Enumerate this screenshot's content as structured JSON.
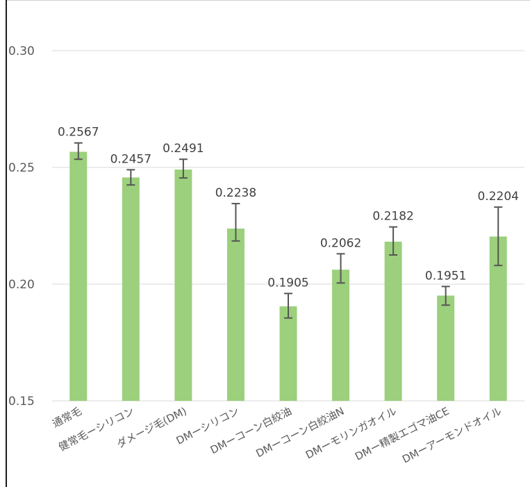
{
  "chart_data": {
    "type": "bar",
    "title": "",
    "xlabel": "",
    "ylabel": "",
    "ylim": [
      0.15,
      0.31
    ],
    "yticks": [
      "0.15",
      "0.20",
      "0.25",
      "0.30"
    ],
    "yticks_values": [
      0.15,
      0.2,
      0.25,
      0.3
    ],
    "grid": true,
    "bar_color": "#9cd07c",
    "errorbar_color": "#555555",
    "categories": [
      "通常毛",
      "健常毛ーシリコン",
      "ダメージ毛(DM)",
      "DMーシリコン",
      "DMーコーン白絞油",
      "DMーコーン白絞油N",
      "DMーモリンガオイル",
      "DMー精製エゴマ油CE",
      "DMーアーモンドオイル"
    ],
    "values": [
      0.2567,
      0.2457,
      0.2491,
      0.2238,
      0.1905,
      0.2062,
      0.2182,
      0.1951,
      0.2204
    ],
    "data_labels": [
      "0.2567",
      "0.2457",
      "0.2491",
      "0.2238",
      "0.1905",
      "0.2062",
      "0.2182",
      "0.1951",
      "0.2204"
    ],
    "error_low": [
      0.2535,
      0.2425,
      0.2455,
      0.2185,
      0.1855,
      0.2005,
      0.2125,
      0.191,
      0.208
    ],
    "error_high": [
      0.2605,
      0.249,
      0.2535,
      0.2345,
      0.196,
      0.213,
      0.2245,
      0.199,
      0.233
    ]
  }
}
